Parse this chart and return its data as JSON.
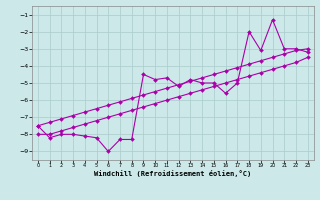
{
  "x": [
    0,
    1,
    2,
    3,
    4,
    5,
    6,
    7,
    8,
    9,
    10,
    11,
    12,
    13,
    14,
    15,
    16,
    17,
    18,
    19,
    20,
    21,
    22,
    23
  ],
  "line1": [
    -7.5,
    -8.2,
    -8.0,
    -8.0,
    -8.1,
    -8.2,
    -9.0,
    -8.3,
    -8.3,
    -4.5,
    -4.8,
    -4.7,
    -5.2,
    -4.8,
    -5.0,
    -5.0,
    -5.6,
    -5.0,
    -2.0,
    -3.1,
    -1.3,
    -3.0,
    -3.0,
    -3.2
  ],
  "line2": [
    -7.5,
    -7.3,
    -7.1,
    -6.9,
    -6.7,
    -6.5,
    -6.3,
    -6.1,
    -5.9,
    -5.7,
    -5.5,
    -5.3,
    -5.1,
    -4.9,
    -4.7,
    -4.5,
    -4.3,
    -4.1,
    -3.9,
    -3.7,
    -3.5,
    -3.3,
    -3.1,
    -3.0
  ],
  "line3": [
    -8.0,
    -8.0,
    -7.8,
    -7.6,
    -7.4,
    -7.2,
    -7.0,
    -6.8,
    -6.6,
    -6.4,
    -6.2,
    -6.0,
    -5.8,
    -5.6,
    -5.4,
    -5.2,
    -5.0,
    -4.8,
    -4.6,
    -4.4,
    -4.2,
    -4.0,
    -3.8,
    -3.5
  ],
  "color": "#aa00aa",
  "bg_color": "#cce8e8",
  "grid_color": "#aacccc",
  "xlabel": "Windchill (Refroidissement éolien,°C)",
  "xlim": [
    -0.5,
    23.5
  ],
  "ylim": [
    -9.5,
    -0.5
  ],
  "yticks": [
    -9,
    -8,
    -7,
    -6,
    -5,
    -4,
    -3,
    -2,
    -1
  ],
  "xticks": [
    0,
    1,
    2,
    3,
    4,
    5,
    6,
    7,
    8,
    9,
    10,
    11,
    12,
    13,
    14,
    15,
    16,
    17,
    18,
    19,
    20,
    21,
    22,
    23
  ],
  "marker": "D",
  "markersize": 2,
  "linewidth": 0.8
}
